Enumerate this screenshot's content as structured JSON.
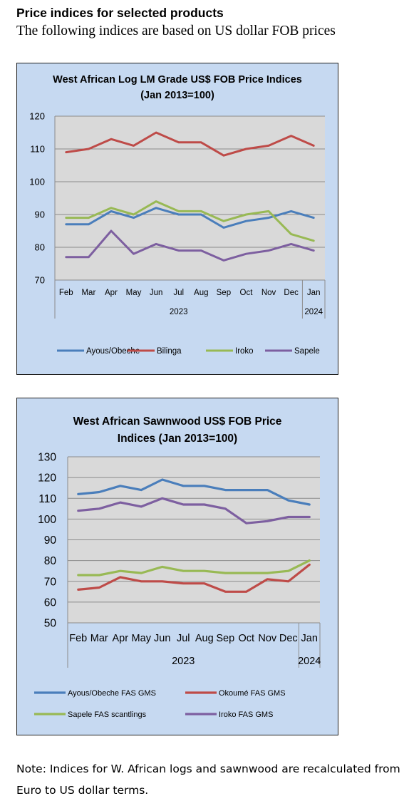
{
  "page": {
    "heading": "Price indices for selected products",
    "subheading": "The following indices are based on US dollar FOB prices",
    "note": "Note: Indices for W. African logs and sawnwood are recalculated from Euro to US dollar terms."
  },
  "chart_data": [
    {
      "type": "line",
      "title_lines": [
        "West African Log LM Grade US$ FOB Price Indices",
        "(Jan 2013=100)"
      ],
      "categories": [
        "Feb",
        "Mar",
        "Apr",
        "May",
        "Jun",
        "Jul",
        "Aug",
        "Sep",
        "Oct",
        "Nov",
        "Dec",
        "Jan"
      ],
      "year_groups": [
        {
          "label": "2023",
          "start": 0,
          "end": 10
        },
        {
          "label": "2024",
          "start": 11,
          "end": 11
        }
      ],
      "ylim": [
        70,
        120
      ],
      "yticks": [
        70,
        80,
        90,
        100,
        110,
        120
      ],
      "grid": true,
      "legend_position": "bottom",
      "series": [
        {
          "name": "Ayous/Obeche",
          "color": "#4a7ebb",
          "values": [
            87,
            87,
            91,
            89,
            92,
            90,
            90,
            86,
            88,
            89,
            91,
            89
          ]
        },
        {
          "name": "Bilinga",
          "color": "#be4b48",
          "values": [
            109,
            110,
            113,
            111,
            115,
            112,
            112,
            108,
            110,
            111,
            114,
            111
          ]
        },
        {
          "name": "Iroko",
          "color": "#98b954",
          "values": [
            89,
            89,
            92,
            90,
            94,
            91,
            91,
            88,
            90,
            91,
            84,
            82
          ]
        },
        {
          "name": "Sapele",
          "color": "#7d5fa0",
          "values": [
            77,
            77,
            85,
            78,
            81,
            79,
            79,
            76,
            78,
            79,
            81,
            79
          ]
        }
      ]
    },
    {
      "type": "line",
      "title_lines": [
        "West African Sawnwood US$ FOB Price",
        "Indices (Jan 2013=100)"
      ],
      "categories": [
        "Feb",
        "Mar",
        "Apr",
        "May",
        "Jun",
        "Jul",
        "Aug",
        "Sep",
        "Oct",
        "Nov",
        "Dec",
        "Jan"
      ],
      "year_groups": [
        {
          "label": "2023",
          "start": 0,
          "end": 10
        },
        {
          "label": "2024",
          "start": 11,
          "end": 11
        }
      ],
      "ylim": [
        50,
        130
      ],
      "yticks": [
        50,
        60,
        70,
        80,
        90,
        100,
        110,
        120,
        130
      ],
      "grid": true,
      "legend_position": "bottom",
      "series": [
        {
          "name": "Ayous/Obeche  FAS GMS",
          "color": "#4a7ebb",
          "values": [
            112,
            113,
            116,
            114,
            119,
            116,
            116,
            114,
            114,
            114,
            109,
            107
          ]
        },
        {
          "name": "Okoumé  FAS GMS",
          "color": "#be4b48",
          "values": [
            66,
            67,
            72,
            70,
            70,
            69,
            69,
            65,
            65,
            71,
            70,
            78
          ]
        },
        {
          "name": "Sapele FAS scantlings",
          "color": "#98b954",
          "values": [
            73,
            73,
            75,
            74,
            77,
            75,
            75,
            74,
            74,
            74,
            75,
            80
          ]
        },
        {
          "name": "Iroko FAS GMS",
          "color": "#7d5fa0",
          "values": [
            104,
            105,
            108,
            106,
            110,
            107,
            107,
            105,
            98,
            99,
            101,
            101
          ]
        }
      ]
    }
  ]
}
